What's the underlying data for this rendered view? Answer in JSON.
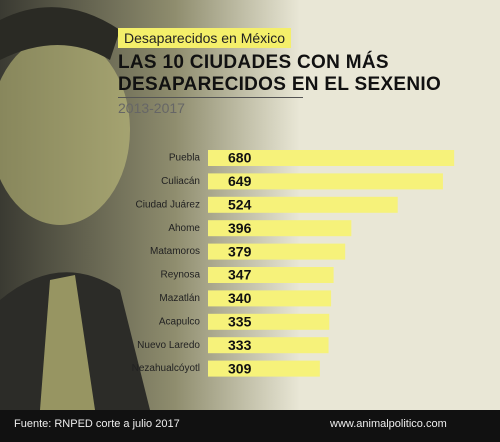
{
  "chart_data": {
    "type": "bar",
    "tag": "Desaparecidos en México",
    "title": "LAS 10 CIUDADES CON MÁS DESAPARECIDOS EN EL SEXENIO",
    "subtitle": "2013-2017",
    "categories": [
      "Puebla",
      "Culiacán",
      "Ciudad Juárez",
      "Ahome",
      "Matamoros",
      "Reynosa",
      "Mazatlán",
      "Acapulco",
      "Nuevo Laredo",
      "Nezahualcóyotl"
    ],
    "values": [
      680,
      649,
      524,
      396,
      379,
      347,
      340,
      335,
      333,
      309
    ],
    "color": "#f6f27a",
    "source": "Fuente: RNPED corte a julio 2017",
    "website": "www.animalpolitico.com"
  }
}
